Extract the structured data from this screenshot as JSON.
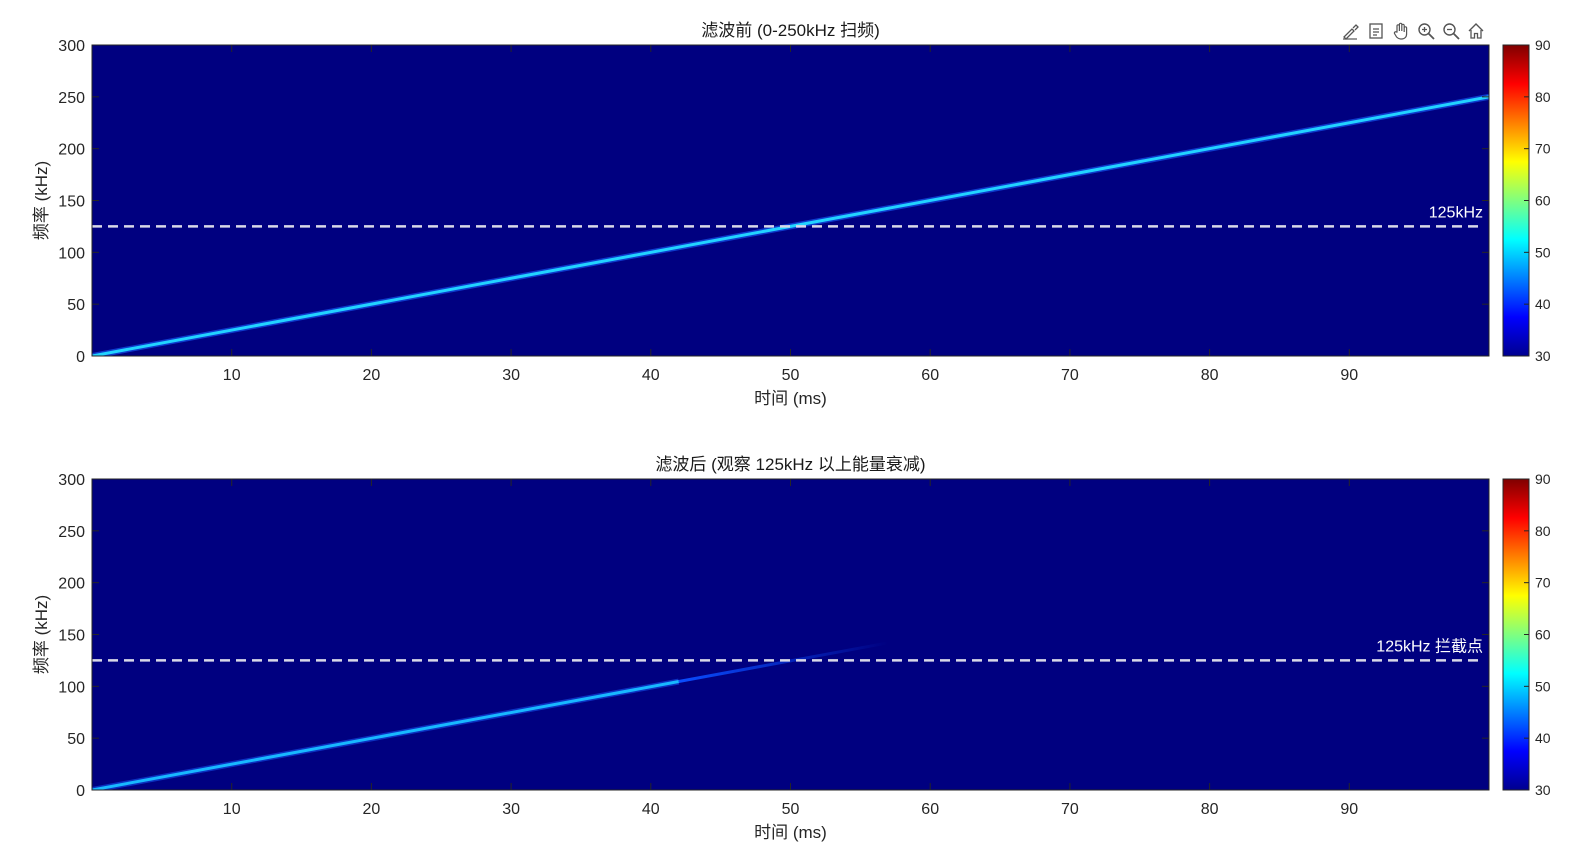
{
  "toolbar": {
    "icons": [
      "brush-icon",
      "export-icon",
      "pan-hand-icon",
      "zoom-in-icon",
      "zoom-out-icon",
      "home-icon"
    ]
  },
  "colors": {
    "background_field": "#000080",
    "trace_bright": "#22d3ff",
    "marker_line": "#d8d8e8",
    "colormap": "jet"
  },
  "chart_data": [
    {
      "type": "heatmap",
      "title": "滤波前 (0-250kHz 扫频)",
      "xlabel": "时间 (ms)",
      "ylabel": "频率 (kHz)",
      "xlim": [
        0,
        100
      ],
      "ylim": [
        0,
        300
      ],
      "xticks": [
        10,
        20,
        30,
        40,
        50,
        60,
        70,
        80,
        90
      ],
      "yticks": [
        0,
        50,
        100,
        150,
        200,
        250,
        300
      ],
      "colorbar": {
        "min": 30,
        "max": 90,
        "ticks": [
          30,
          40,
          50,
          60,
          70,
          80,
          90
        ]
      },
      "background_level": 30,
      "sweep": {
        "x": [
          0,
          100
        ],
        "y": [
          0,
          250
        ],
        "level": 50,
        "visible_until": 100
      },
      "reference_line": {
        "y": 125,
        "style": "dashed",
        "label": "125kHz"
      }
    },
    {
      "type": "heatmap",
      "title": "滤波后 (观察 125kHz 以上能量衰减)",
      "xlabel": "时间 (ms)",
      "ylabel": "频率 (kHz)",
      "xlim": [
        0,
        100
      ],
      "ylim": [
        0,
        300
      ],
      "xticks": [
        10,
        20,
        30,
        40,
        50,
        60,
        70,
        80,
        90
      ],
      "yticks": [
        0,
        50,
        100,
        150,
        200,
        250,
        300
      ],
      "colorbar": {
        "min": 30,
        "max": 90,
        "ticks": [
          30,
          40,
          50,
          60,
          70,
          80,
          90
        ]
      },
      "background_level": 30,
      "sweep": {
        "x": [
          0,
          57
        ],
        "y": [
          0,
          142
        ],
        "level": 48,
        "fade_from": 42
      },
      "reference_line": {
        "y": 125,
        "style": "dashed",
        "label": "125kHz 拦截点"
      }
    }
  ]
}
